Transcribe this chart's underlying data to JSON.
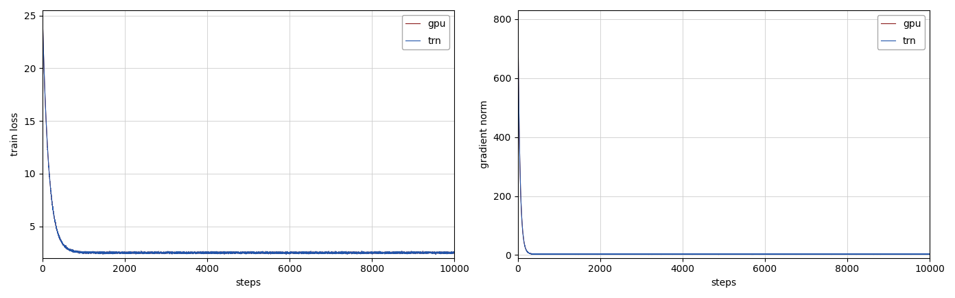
{
  "total_steps": 10000,
  "loss_peak": 25.0,
  "loss_final": 2.5,
  "loss_decay": 150,
  "grad_peak": 830.0,
  "grad_final": 3.0,
  "grad_decay": 50,
  "gpu_color": "#8b1a1a",
  "trn_color": "#2255aa",
  "left_ylabel": "train loss",
  "right_ylabel": "gradient norm",
  "xlabel": "steps",
  "xlim": [
    0,
    10000
  ],
  "loss_ylim": [
    2.0,
    25.5
  ],
  "grad_ylim": [
    -10,
    830
  ],
  "loss_yticks": [
    5,
    10,
    15,
    20,
    25
  ],
  "grad_yticks": [
    0,
    200,
    400,
    600,
    800
  ],
  "xticks": [
    0,
    2000,
    4000,
    6000,
    8000,
    10000
  ],
  "legend_labels": [
    "gpu",
    "trn"
  ],
  "figsize": [
    13.92,
    4.34
  ],
  "dpi": 100
}
